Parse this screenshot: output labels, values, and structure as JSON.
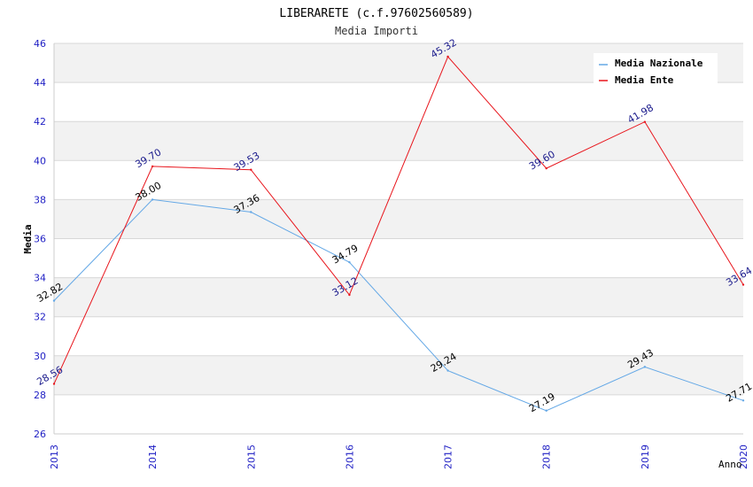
{
  "chart_data": {
    "type": "line",
    "title": "LIBERARETE (c.f.97602560589)",
    "subtitle": "Media Importi",
    "xlabel": "Anno",
    "ylabel": "Media",
    "categories": [
      "2013",
      "2014",
      "2015",
      "2016",
      "2017",
      "2018",
      "2019",
      "2020"
    ],
    "ylim": [
      26,
      46
    ],
    "yticks": [
      "26",
      "28",
      "30",
      "32",
      "34",
      "36",
      "38",
      "40",
      "42",
      "44",
      "46"
    ],
    "grid": true,
    "legend_position": "top-right",
    "series": [
      {
        "name": "Media Nazionale",
        "color": "#64a8e6",
        "label_color": "#000000",
        "values": [
          32.82,
          38.0,
          37.36,
          34.79,
          29.24,
          27.19,
          29.43,
          27.71
        ],
        "labels": [
          "32.82",
          "38.00",
          "37.36",
          "34.79",
          "29.24",
          "27.19",
          "29.43",
          "27.71"
        ]
      },
      {
        "name": "Media Ente",
        "color": "#e8141b",
        "label_color": "#1a1a8c",
        "values": [
          28.56,
          39.7,
          39.53,
          33.12,
          45.32,
          39.6,
          41.98,
          33.64
        ],
        "labels": [
          "28.56",
          "39.70",
          "39.53",
          "33.12",
          "45.32",
          "39.60",
          "41.98",
          "33.64"
        ]
      }
    ]
  },
  "colors": {
    "axis_tick_text": "#1f1fc4",
    "band_fill": "#f2f2f2",
    "grid_line": "#d8d8d8"
  }
}
